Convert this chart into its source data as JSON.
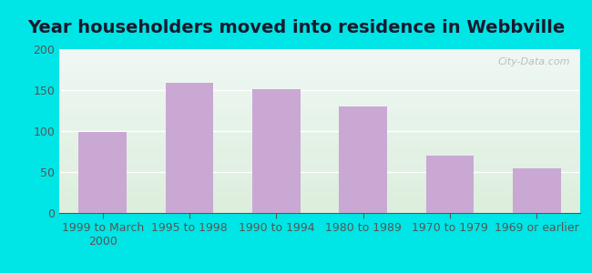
{
  "title": "Year householders moved into residence in Webbville",
  "categories": [
    "1999 to March\n2000",
    "1995 to 1998",
    "1990 to 1994",
    "1980 to 1989",
    "1970 to 1979",
    "1969 or earlier"
  ],
  "values": [
    99,
    159,
    151,
    130,
    70,
    54
  ],
  "bar_color": "#c9a8d4",
  "ylim": [
    0,
    200
  ],
  "yticks": [
    0,
    50,
    100,
    150,
    200
  ],
  "title_fontsize": 14,
  "tick_fontsize": 9,
  "background_outer": "#00e5e5",
  "background_plot_top": "#e6f0e8",
  "background_plot_bottom": "#ddeedd",
  "grid_color": "#ffffff",
  "watermark": "City-Data.com",
  "tick_color": "#555555",
  "title_color": "#1a1a2e"
}
